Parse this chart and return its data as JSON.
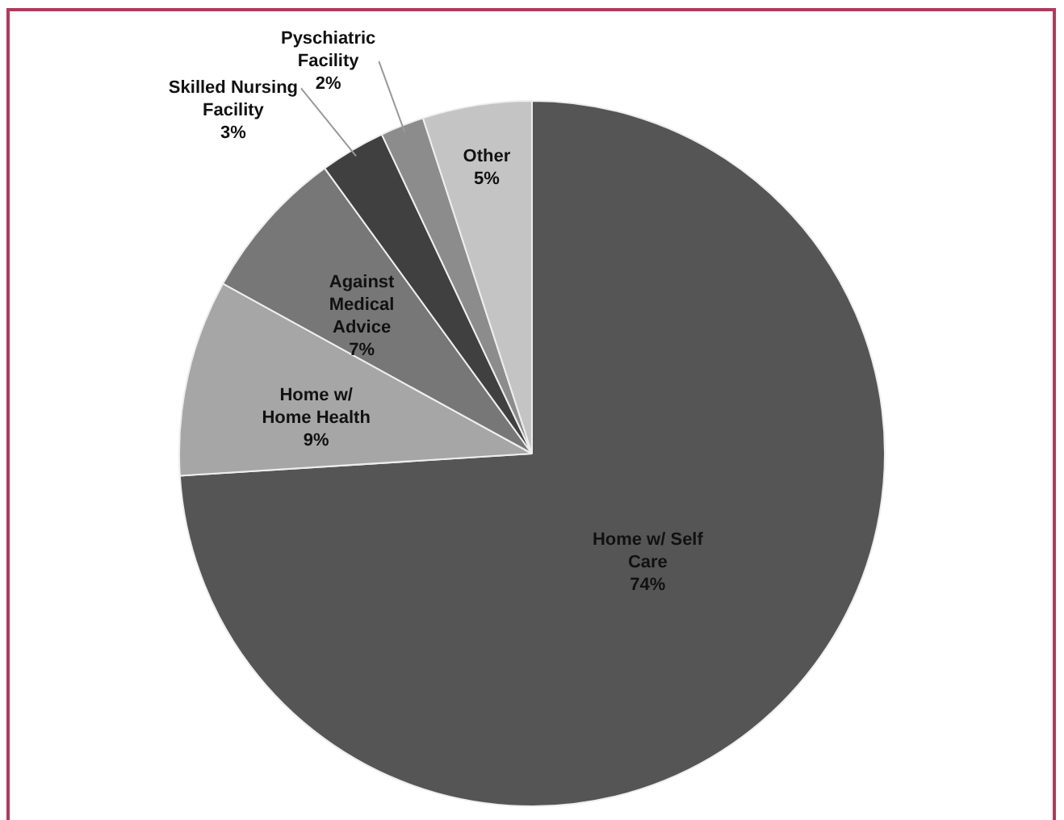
{
  "chart_data": {
    "type": "pie",
    "categories": [
      "Home w/ Self Care",
      "Home w/ Home Health",
      "Against Medical Advice",
      "Skilled Nursing Facility",
      "Pyschiatric Facility",
      "Other"
    ],
    "values": [
      74,
      9,
      7,
      3,
      2,
      5
    ],
    "colors": [
      "#555555",
      "#a6a6a6",
      "#777777",
      "#404040",
      "#8c8c8c",
      "#c4c4c4"
    ],
    "value_labels": [
      "74%",
      "9%",
      "7%",
      "3%",
      "2%",
      "5%"
    ],
    "legend": false
  }
}
